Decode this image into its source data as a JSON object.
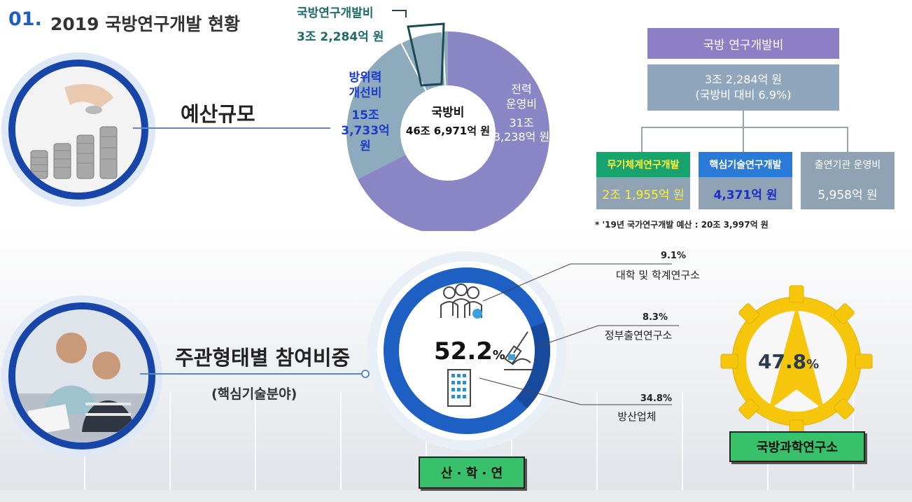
{
  "header": {
    "number": "01.",
    "title": "2019 국방연구개발 현황"
  },
  "budget": {
    "label": "예산규모",
    "pie_callout": {
      "label": "국방연구개발비",
      "value": "3조 2,284억 원"
    },
    "pie": {
      "center_title": "국방비",
      "center_value": "46조 6,971억 원",
      "left_title_1": "방위력",
      "left_title_2": "개선비",
      "left_value_1": "15조",
      "left_value_2": "3,733억 원",
      "right_title_1": "전력",
      "right_title_2": "운영비",
      "right_value_1": "31조",
      "right_value_2": "3,238억 원"
    },
    "tree": {
      "top_label": "국방 연구개발비",
      "total_line1": "3조 2,284억 원",
      "total_line2": "(국방비 대비 6.9%)",
      "items": [
        {
          "label": "무기체계연구개발",
          "value": "2조 1,955억 원"
        },
        {
          "label": "핵심기술연구개발",
          "value": "4,371억 원"
        },
        {
          "label": "출연기관 운영비",
          "value": "5,958억 원"
        }
      ],
      "note": "* '19년 국가연구개발 예산 : 20조 3,997억 원"
    }
  },
  "participation": {
    "label": "주관형태별 참여비중",
    "sub_label": "(핵심기술분야)",
    "donut_value": "52.2",
    "donut_unit": "%",
    "callouts": [
      {
        "pct": "9.1%",
        "label": "대학 및 학계연구소"
      },
      {
        "pct": "8.3%",
        "label": "정부출연연구소"
      },
      {
        "pct": "34.8%",
        "label": "방산업체"
      }
    ],
    "group_label": "산 · 학 · 연",
    "gear_value": "47.8",
    "gear_unit": "%",
    "gear_label": "국방과학연구소"
  },
  "colors": {
    "primary_blue": "#1f5fbf",
    "pie_purple": "#8a86c6",
    "pie_slate": "#8eaabd",
    "gear_yellow": "#f5c60c",
    "label_green": "#39c06a",
    "label_yellow": "#ffe34a"
  }
}
